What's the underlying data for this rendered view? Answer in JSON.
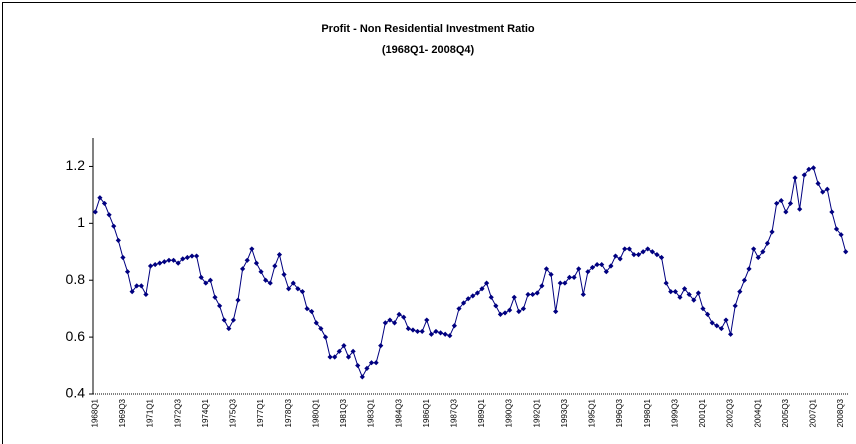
{
  "chart_data": {
    "type": "line",
    "title": "Profit - Non Residential Investment Ratio",
    "subtitle": "(1968Q1- 2008Q4)",
    "categories": [
      "1968Q1",
      null,
      null,
      null,
      null,
      null,
      "1969Q3",
      null,
      null,
      null,
      null,
      null,
      "1971Q1",
      null,
      null,
      null,
      null,
      null,
      "1972Q3",
      null,
      null,
      null,
      null,
      null,
      "1974Q1",
      null,
      null,
      null,
      null,
      null,
      "1975Q3",
      null,
      null,
      null,
      null,
      null,
      "1977Q1",
      null,
      null,
      null,
      null,
      null,
      "1978Q3",
      null,
      null,
      null,
      null,
      null,
      "1980Q1",
      null,
      null,
      null,
      null,
      null,
      "1981Q3",
      null,
      null,
      null,
      null,
      null,
      "1983Q1",
      null,
      null,
      null,
      null,
      null,
      "1984Q3",
      null,
      null,
      null,
      null,
      null,
      "1986Q1",
      null,
      null,
      null,
      null,
      null,
      "1987Q3",
      null,
      null,
      null,
      null,
      null,
      "1989Q1",
      null,
      null,
      null,
      null,
      null,
      "1990Q3",
      null,
      null,
      null,
      null,
      null,
      "1992Q1",
      null,
      null,
      null,
      null,
      null,
      "1993Q3",
      null,
      null,
      null,
      null,
      null,
      "1995Q1",
      null,
      null,
      null,
      null,
      null,
      "1996Q3",
      null,
      null,
      null,
      null,
      null,
      "1998Q1",
      null,
      null,
      null,
      null,
      null,
      "1999Q3",
      null,
      null,
      null,
      null,
      null,
      "2001Q1",
      null,
      null,
      null,
      null,
      null,
      "2002Q3",
      null,
      null,
      null,
      null,
      null,
      "2004Q1",
      null,
      null,
      null,
      null,
      null,
      "2005Q3",
      null,
      null,
      null,
      null,
      null,
      "2007Q1",
      null,
      null,
      null,
      null,
      null,
      "2008Q3",
      null
    ],
    "series": [
      {
        "color": "#000080",
        "values": [
          1.04,
          1.09,
          1.07,
          1.03,
          0.99,
          0.94,
          0.88,
          0.83,
          0.76,
          0.78,
          0.78,
          0.75,
          0.85,
          0.855,
          0.86,
          0.865,
          0.87,
          0.87,
          0.86,
          0.875,
          0.88,
          0.885,
          0.885,
          0.81,
          0.79,
          0.8,
          0.74,
          0.71,
          0.66,
          0.63,
          0.66,
          0.73,
          0.84,
          0.87,
          0.91,
          0.86,
          0.83,
          0.8,
          0.79,
          0.85,
          0.89,
          0.82,
          0.77,
          0.79,
          0.77,
          0.76,
          0.7,
          0.69,
          0.65,
          0.63,
          0.6,
          0.53,
          0.53,
          0.55,
          0.57,
          0.53,
          0.55,
          0.5,
          0.46,
          0.49,
          0.51,
          0.51,
          0.57,
          0.65,
          0.66,
          0.65,
          0.68,
          0.67,
          0.63,
          0.625,
          0.62,
          0.62,
          0.66,
          0.61,
          0.62,
          0.615,
          0.61,
          0.605,
          0.64,
          0.7,
          0.72,
          0.735,
          0.745,
          0.755,
          0.77,
          0.79,
          0.74,
          0.71,
          0.68,
          0.685,
          0.695,
          0.74,
          0.69,
          0.7,
          0.75,
          0.75,
          0.755,
          0.78,
          0.84,
          0.82,
          0.69,
          0.79,
          0.79,
          0.81,
          0.81,
          0.84,
          0.75,
          0.83,
          0.845,
          0.855,
          0.855,
          0.83,
          0.85,
          0.885,
          0.875,
          0.91,
          0.91,
          0.89,
          0.89,
          0.9,
          0.91,
          0.9,
          0.89,
          0.88,
          0.79,
          0.76,
          0.76,
          0.74,
          0.77,
          0.75,
          0.73,
          0.755,
          0.7,
          0.68,
          0.65,
          0.64,
          0.63,
          0.66,
          0.61,
          0.71,
          0.76,
          0.8,
          0.84,
          0.91,
          0.88,
          0.9,
          0.93,
          0.97,
          1.07,
          1.08,
          1.04,
          1.07,
          1.16,
          1.05,
          1.17,
          1.19,
          1.195,
          1.14,
          1.11,
          1.12,
          1.04,
          0.98,
          0.96,
          0.9
        ]
      }
    ],
    "ylim": [
      0.4,
      1.3
    ],
    "yticks": [
      0.4,
      0.6,
      0.8,
      1,
      1.2
    ],
    "grid": false
  }
}
